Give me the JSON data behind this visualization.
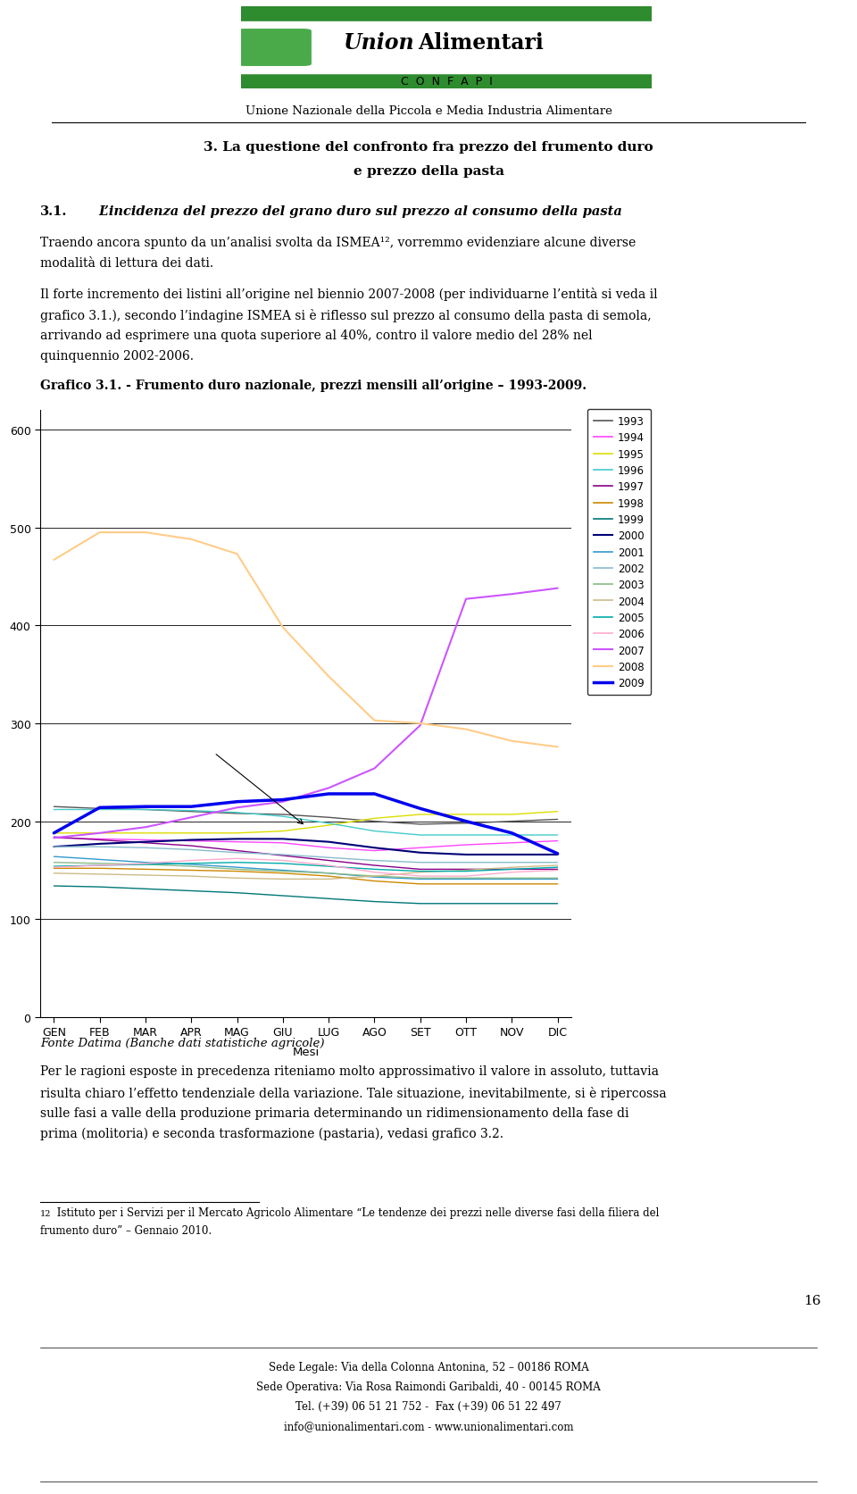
{
  "months": [
    "GEN",
    "FEB",
    "MAR",
    "APR",
    "MAG",
    "GIU",
    "LUG",
    "AGO",
    "SET",
    "OTT",
    "NOV",
    "DIC"
  ],
  "series": {
    "1993": {
      "color": "#555555",
      "lw": 1.0,
      "data": [
        215,
        213,
        212,
        210,
        208,
        207,
        204,
        200,
        197,
        198,
        200,
        202
      ]
    },
    "1994": {
      "color": "#ff44ff",
      "lw": 1.0,
      "data": [
        183,
        182,
        181,
        180,
        179,
        178,
        173,
        170,
        173,
        176,
        178,
        180
      ]
    },
    "1995": {
      "color": "#dddd00",
      "lw": 1.0,
      "data": [
        188,
        188,
        188,
        188,
        188,
        190,
        196,
        203,
        207,
        207,
        207,
        210
      ]
    },
    "1996": {
      "color": "#44cccc",
      "lw": 1.0,
      "data": [
        212,
        212,
        212,
        211,
        209,
        205,
        198,
        190,
        186,
        186,
        186,
        186
      ]
    },
    "1997": {
      "color": "#880088",
      "lw": 1.0,
      "data": [
        184,
        181,
        178,
        175,
        170,
        165,
        160,
        155,
        151,
        151,
        151,
        151
      ]
    },
    "1998": {
      "color": "#cc8800",
      "lw": 1.0,
      "data": [
        152,
        152,
        151,
        150,
        149,
        147,
        144,
        139,
        136,
        136,
        136,
        136
      ]
    },
    "1999": {
      "color": "#007777",
      "lw": 1.0,
      "data": [
        134,
        133,
        131,
        129,
        127,
        124,
        121,
        118,
        116,
        116,
        116,
        116
      ]
    },
    "2000": {
      "color": "#000077",
      "lw": 1.5,
      "data": [
        174,
        177,
        179,
        181,
        182,
        182,
        179,
        173,
        168,
        166,
        166,
        166
      ]
    },
    "2001": {
      "color": "#3399cc",
      "lw": 1.0,
      "data": [
        164,
        161,
        158,
        156,
        153,
        150,
        147,
        143,
        141,
        141,
        141,
        141
      ]
    },
    "2002": {
      "color": "#88bbcc",
      "lw": 1.0,
      "data": [
        174,
        174,
        173,
        171,
        168,
        166,
        163,
        160,
        158,
        158,
        158,
        158
      ]
    },
    "2003": {
      "color": "#88bb88",
      "lw": 1.0,
      "data": [
        158,
        157,
        156,
        154,
        151,
        149,
        147,
        144,
        142,
        142,
        142,
        142
      ]
    },
    "2004": {
      "color": "#ccbb88",
      "lw": 1.0,
      "data": [
        147,
        146,
        145,
        144,
        142,
        141,
        141,
        144,
        148,
        150,
        153,
        155
      ]
    },
    "2005": {
      "color": "#00aaaa",
      "lw": 1.0,
      "data": [
        154,
        155,
        156,
        157,
        158,
        157,
        154,
        151,
        149,
        149,
        151,
        153
      ]
    },
    "2006": {
      "color": "#ffaacc",
      "lw": 1.0,
      "data": [
        153,
        155,
        157,
        160,
        162,
        160,
        155,
        148,
        144,
        144,
        148,
        150
      ]
    },
    "2007": {
      "color": "#cc55ff",
      "lw": 1.5,
      "data": [
        183,
        188,
        194,
        204,
        214,
        220,
        234,
        254,
        298,
        427,
        432,
        438
      ]
    },
    "2008": {
      "color": "#ffcc88",
      "lw": 1.5,
      "data": [
        467,
        495,
        495,
        488,
        473,
        398,
        348,
        303,
        300,
        294,
        282,
        276
      ]
    },
    "2009": {
      "color": "#0000ee",
      "lw": 2.5,
      "data": [
        188,
        214,
        215,
        215,
        220,
        222,
        228,
        228,
        213,
        200,
        188,
        167
      ]
    }
  },
  "ylim_max": 600,
  "yticks": [
    0,
    100,
    200,
    300,
    400,
    500,
    600
  ],
  "page_number": "16",
  "logo_green": "#2e8b2e",
  "header_confapi": "Unione Nazionale della Piccola e Media Industria Alimentare",
  "section_line1": "3. La questione del confronto fra prezzo del frumento duro",
  "section_line2": "e prezzo della pasta",
  "sub_num": "3.1.",
  "sub_title": "L’incidenza del prezzo del grano duro sul prezzo al consumo della pasta",
  "body1_line1": "Traendo ancora spunto da un’analisi svolta da ISMEA¹², vorremmo evidenziare alcune diverse",
  "body1_line2": "modalità di lettura dei dati.",
  "body2_line1": "Il forte incremento dei listini all’origine nel biennio 2007-2008 (per individuarne l’entità si veda il",
  "body2_line2": "grafico 3.1.), secondo l’indagine ISMEA si è riflesso sul prezzo al consumo della pasta di semola,",
  "body2_line3": "arrivando ad esprimere una quota superiore al 40%, contro il valore medio del 28% nel",
  "body2_line4": "quinquennio 2002-2006.",
  "graph_label": "Grafico 3.1. - Frumento duro nazionale, prezzi mensili all’origine – 1993-2009.",
  "fonte": "Fonte Datima (Banche dati statistiche agricole)",
  "body3_line1": "Per le ragioni esposte in precedenza riteniamo molto approssimativo il valore in assoluto, tuttavia",
  "body3_line2": "risulta chiaro l’effetto tendenziale della variazione. Tale situazione, inevitabilmente, si è ripercossa",
  "body3_line3": "sulle fasi a valle della produzione primaria determinando un ridimensionamento della fase di",
  "body3_line4": "prima (molitoria) e seconda trasformazione (pastaria), vedasi grafico 3.2.",
  "footnote_sup": "12",
  "footnote_line1": " Istituto per i Servizi per il Mercato Agricolo Alimentare “Le tendenze dei prezzi nelle diverse fasi della filiera del",
  "footnote_line2": "frumento duro” – Gennaio 2010.",
  "footer1": "Sede Legale: Via della Colonna Antonina, 52 – 00186 ROMA",
  "footer2": "Sede Operativa: Via Rosa Raimondi Garibaldi, 40 - 00145 ROMA",
  "footer3": "Tel. (+39) 06 51 21 752 -  Fax (+39) 06 51 22 497",
  "footer4": "info@unionalimentari.com - www.unionalimentari.com"
}
